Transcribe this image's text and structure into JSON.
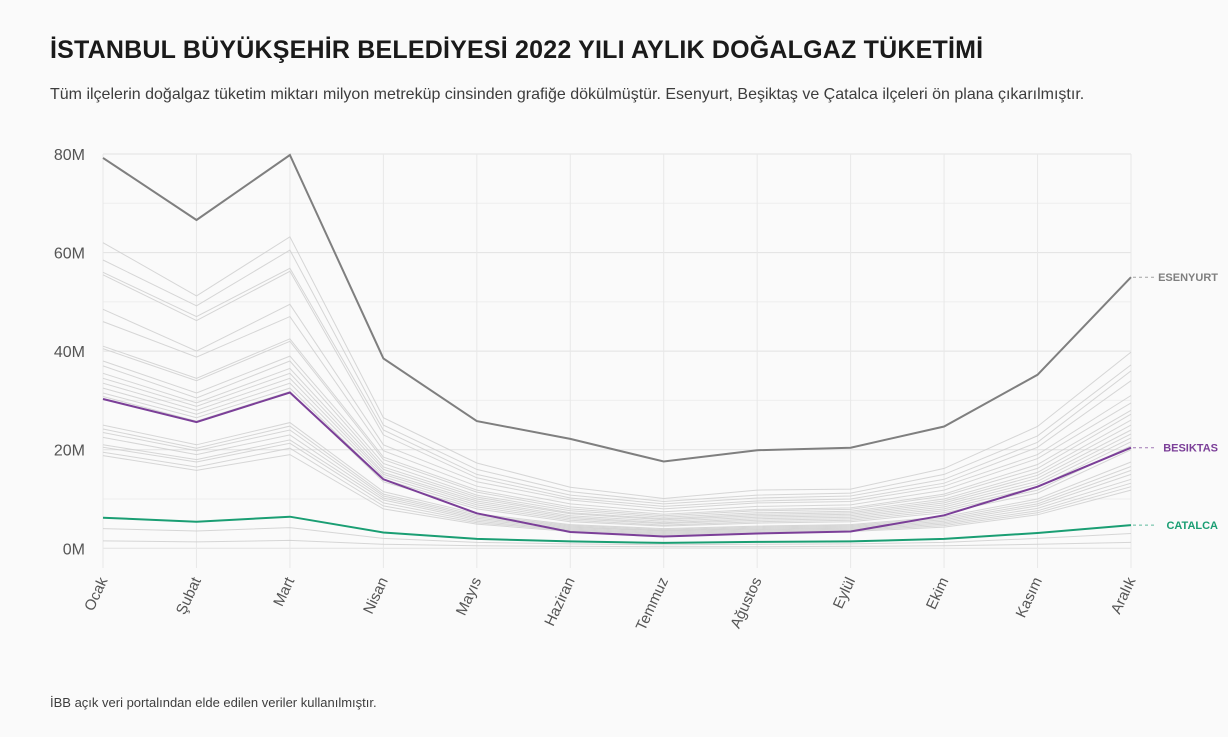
{
  "header": {
    "title": "İSTANBUL BÜYÜKŞEHİR BELEDİYESİ 2022 YILI AYLIK DOĞALGAZ TÜKETİMİ",
    "subtitle": "Tüm ilçelerin doğalgaz tüketim miktarı milyon metreküp cinsinden grafiğe dökülmüştür. Esenyurt, Beşiktaş ve Çatalca ilçeleri ön plana çıkarılmıştır."
  },
  "footer": {
    "caption": "İBB açık veri portalından elde edilen veriler kullanılmıştır."
  },
  "chart_data": {
    "type": "line",
    "title": "İSTANBUL BÜYÜKŞEHİR BELEDİYESİ 2022 YILI AYLIK DOĞALGAZ TÜKETİMİ",
    "categories": [
      "Ocak",
      "Şubat",
      "Mart",
      "Nisan",
      "Mayıs",
      "Haziran",
      "Temmuz",
      "Ağustos",
      "Eylül",
      "Ekim",
      "Kasım",
      "Aralık"
    ],
    "ylim": [
      -4,
      80
    ],
    "yticks": [
      0,
      20,
      40,
      60,
      80
    ],
    "ytick_labels": [
      "0M",
      "20M",
      "40M",
      "60M",
      "80M"
    ],
    "grid": true,
    "highlight_series": [
      {
        "name": "ESENYURT",
        "color": "#7f7f7f",
        "values": [
          79.2,
          66.6,
          79.8,
          38.5,
          25.8,
          22.2,
          17.6,
          19.9,
          20.4,
          24.7,
          35.2,
          55.0
        ]
      },
      {
        "name": "BESIKTAS",
        "color": "#7b3f98",
        "values": [
          30.3,
          25.6,
          31.6,
          14.0,
          7.1,
          3.3,
          2.4,
          3.0,
          3.4,
          6.7,
          12.5,
          20.4
        ]
      },
      {
        "name": "CATALCA",
        "color": "#1a9e73",
        "values": [
          6.2,
          5.4,
          6.4,
          3.2,
          1.9,
          1.4,
          1.1,
          1.3,
          1.4,
          1.9,
          3.1,
          4.7
        ]
      }
    ],
    "background_series": [
      {
        "values": [
          62.0,
          51.2,
          63.2,
          26.5,
          17.3,
          12.4,
          10.1,
          11.8,
          12.0,
          16.2,
          24.7,
          39.8
        ]
      },
      {
        "values": [
          58.5,
          49.2,
          60.5,
          25.0,
          16.0,
          11.5,
          9.5,
          10.8,
          11.2,
          15.0,
          22.8,
          37.2
        ]
      },
      {
        "values": [
          56.0,
          47.0,
          56.8,
          24.0,
          15.0,
          10.8,
          9.0,
          10.2,
          10.6,
          14.0,
          21.5,
          36.0
        ]
      },
      {
        "values": [
          55.5,
          46.2,
          56.2,
          23.0,
          14.3,
          10.2,
          8.5,
          9.6,
          10.0,
          13.2,
          20.5,
          34.0
        ]
      },
      {
        "values": [
          48.5,
          40.0,
          49.5,
          21.0,
          13.5,
          9.8,
          8.0,
          9.2,
          9.5,
          12.6,
          19.0,
          31.0
        ]
      },
      {
        "values": [
          46.0,
          38.8,
          47.0,
          19.8,
          12.6,
          9.0,
          7.4,
          8.5,
          8.8,
          11.8,
          18.2,
          29.5
        ]
      },
      {
        "values": [
          41.0,
          34.5,
          42.5,
          18.5,
          11.8,
          8.4,
          6.9,
          7.9,
          8.2,
          11.0,
          17.0,
          28.0
        ]
      },
      {
        "values": [
          40.5,
          34.0,
          42.0,
          18.0,
          11.4,
          8.0,
          6.6,
          7.6,
          7.9,
          10.6,
          16.2,
          27.2
        ]
      },
      {
        "values": [
          38.0,
          31.5,
          39.0,
          17.2,
          10.8,
          7.6,
          6.3,
          7.2,
          7.5,
          10.0,
          15.4,
          26.0
        ]
      },
      {
        "values": [
          37.0,
          30.5,
          38.0,
          16.5,
          10.4,
          7.2,
          6.0,
          6.9,
          7.2,
          9.6,
          14.8,
          25.0
        ]
      },
      {
        "values": [
          35.5,
          29.5,
          36.5,
          16.0,
          10.0,
          7.0,
          5.8,
          6.6,
          6.9,
          9.2,
          14.2,
          24.0
        ]
      },
      {
        "values": [
          34.5,
          28.8,
          35.5,
          15.4,
          9.6,
          6.6,
          5.5,
          6.3,
          6.6,
          8.8,
          13.6,
          23.2
        ]
      },
      {
        "values": [
          33.5,
          28.0,
          34.5,
          15.0,
          9.2,
          6.3,
          5.2,
          6.0,
          6.3,
          8.4,
          13.0,
          22.4
        ]
      },
      {
        "values": [
          32.5,
          27.2,
          33.5,
          14.5,
          8.8,
          6.0,
          5.0,
          5.7,
          6.0,
          8.0,
          12.4,
          21.6
        ]
      },
      {
        "values": [
          31.5,
          26.5,
          32.5,
          14.0,
          8.4,
          5.7,
          4.7,
          5.4,
          5.7,
          7.6,
          11.8,
          20.8
        ]
      },
      {
        "values": [
          30.8,
          25.8,
          31.8,
          13.5,
          8.0,
          5.4,
          4.5,
          5.1,
          5.4,
          7.2,
          11.2,
          20.0
        ]
      },
      {
        "values": [
          25.0,
          21.0,
          25.5,
          11.5,
          7.0,
          4.8,
          4.0,
          4.5,
          4.8,
          6.4,
          10.0,
          17.5
        ]
      },
      {
        "values": [
          24.2,
          20.3,
          24.8,
          11.0,
          6.7,
          4.6,
          3.8,
          4.3,
          4.6,
          6.1,
          9.5,
          16.6
        ]
      },
      {
        "values": [
          23.5,
          19.8,
          24.0,
          10.6,
          6.4,
          4.4,
          3.6,
          4.1,
          4.4,
          5.8,
          9.0,
          15.8
        ]
      },
      {
        "values": [
          22.5,
          19.0,
          23.0,
          10.2,
          6.1,
          4.2,
          3.5,
          3.9,
          4.2,
          5.5,
          8.6,
          15.0
        ]
      },
      {
        "values": [
          21.0,
          18.0,
          22.0,
          9.8,
          5.8,
          4.0,
          3.3,
          3.7,
          4.0,
          5.2,
          8.1,
          14.0
        ]
      },
      {
        "values": [
          20.5,
          17.5,
          21.3,
          9.2,
          5.5,
          3.8,
          3.1,
          3.5,
          3.8,
          4.9,
          7.6,
          13.2
        ]
      },
      {
        "values": [
          19.5,
          16.5,
          20.3,
          8.6,
          5.2,
          3.6,
          2.9,
          3.3,
          3.6,
          4.6,
          7.2,
          12.5
        ]
      },
      {
        "values": [
          18.8,
          15.8,
          19.0,
          8.0,
          4.9,
          3.4,
          2.7,
          3.1,
          3.4,
          4.3,
          6.8,
          11.8
        ]
      },
      {
        "values": [
          4.0,
          3.5,
          4.2,
          2.0,
          1.2,
          0.9,
          0.7,
          0.8,
          0.9,
          1.2,
          2.0,
          3.0
        ]
      },
      {
        "values": [
          1.5,
          1.3,
          1.6,
          0.8,
          0.5,
          0.4,
          0.3,
          0.3,
          0.4,
          0.5,
          0.8,
          1.2
        ]
      }
    ]
  }
}
